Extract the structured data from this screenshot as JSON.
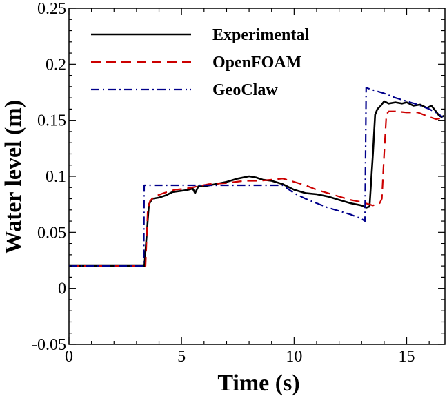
{
  "chart_data": {
    "type": "line",
    "title": "",
    "xlabel": "Time (s)",
    "ylabel": "Water level (m)",
    "xlim": [
      0,
      16.7
    ],
    "ylim": [
      -0.05,
      0.25
    ],
    "xticks": [
      0,
      5,
      10,
      15
    ],
    "xtick_labels": [
      "0",
      "5",
      "10",
      "15"
    ],
    "yticks": [
      -0.05,
      0,
      0.05,
      0.1,
      0.15,
      0.2,
      0.25
    ],
    "ytick_labels": [
      "-0.05",
      "0",
      "0.05",
      "0.1",
      "0.15",
      "0.2",
      "0.25"
    ],
    "grid": false,
    "legend_position": "top-left",
    "series": [
      {
        "name": "Experimental",
        "color": "#000000",
        "style": "solid",
        "points": [
          [
            0,
            0.02
          ],
          [
            3.3,
            0.02
          ],
          [
            3.35,
            0.02
          ],
          [
            3.55,
            0.075
          ],
          [
            3.7,
            0.08
          ],
          [
            4.0,
            0.081
          ],
          [
            4.3,
            0.083
          ],
          [
            4.6,
            0.086
          ],
          [
            5.0,
            0.087
          ],
          [
            5.3,
            0.088
          ],
          [
            5.5,
            0.089
          ],
          [
            5.6,
            0.085
          ],
          [
            5.75,
            0.091
          ],
          [
            6.0,
            0.091
          ],
          [
            6.5,
            0.093
          ],
          [
            7.0,
            0.095
          ],
          [
            7.5,
            0.098
          ],
          [
            8.0,
            0.1
          ],
          [
            8.3,
            0.099
          ],
          [
            8.6,
            0.097
          ],
          [
            9.0,
            0.096
          ],
          [
            9.5,
            0.093
          ],
          [
            10.0,
            0.088
          ],
          [
            10.5,
            0.085
          ],
          [
            11.0,
            0.084
          ],
          [
            11.5,
            0.082
          ],
          [
            12.0,
            0.079
          ],
          [
            12.5,
            0.076
          ],
          [
            13.0,
            0.074
          ],
          [
            13.2,
            0.072
          ],
          [
            13.35,
            0.073
          ],
          [
            13.5,
            0.12
          ],
          [
            13.6,
            0.155
          ],
          [
            13.7,
            0.16
          ],
          [
            13.85,
            0.163
          ],
          [
            14.0,
            0.167
          ],
          [
            14.2,
            0.165
          ],
          [
            14.5,
            0.166
          ],
          [
            14.8,
            0.165
          ],
          [
            15.0,
            0.166
          ],
          [
            15.3,
            0.163
          ],
          [
            15.6,
            0.164
          ],
          [
            15.9,
            0.161
          ],
          [
            16.1,
            0.163
          ],
          [
            16.3,
            0.158
          ],
          [
            16.45,
            0.154
          ],
          [
            16.55,
            0.153
          ],
          [
            16.65,
            0.154
          ]
        ]
      },
      {
        "name": "OpenFOAM",
        "color": "#cc0000",
        "style": "dashed",
        "points": [
          [
            0,
            0.02
          ],
          [
            3.3,
            0.02
          ],
          [
            3.4,
            0.02
          ],
          [
            3.5,
            0.07
          ],
          [
            3.6,
            0.078
          ],
          [
            3.8,
            0.082
          ],
          [
            4.2,
            0.085
          ],
          [
            4.7,
            0.088
          ],
          [
            5.2,
            0.089
          ],
          [
            5.7,
            0.091
          ],
          [
            6.2,
            0.093
          ],
          [
            7.0,
            0.094
          ],
          [
            7.8,
            0.096
          ],
          [
            8.5,
            0.096
          ],
          [
            9.0,
            0.097
          ],
          [
            9.5,
            0.098
          ],
          [
            10.0,
            0.095
          ],
          [
            10.5,
            0.092
          ],
          [
            11.0,
            0.088
          ],
          [
            11.5,
            0.085
          ],
          [
            12.0,
            0.082
          ],
          [
            12.5,
            0.079
          ],
          [
            13.0,
            0.077
          ],
          [
            13.5,
            0.074
          ],
          [
            13.8,
            0.076
          ],
          [
            13.9,
            0.08
          ],
          [
            14.0,
            0.12
          ],
          [
            14.1,
            0.155
          ],
          [
            14.2,
            0.158
          ],
          [
            14.5,
            0.158
          ],
          [
            15.0,
            0.157
          ],
          [
            15.5,
            0.157
          ],
          [
            16.0,
            0.153
          ],
          [
            16.3,
            0.151
          ],
          [
            16.6,
            0.152
          ]
        ]
      },
      {
        "name": "GeoClaw",
        "color": "#00008b",
        "style": "dashdot",
        "points": [
          [
            0,
            0.02
          ],
          [
            3.32,
            0.02
          ],
          [
            3.34,
            0.092
          ],
          [
            3.5,
            0.092
          ],
          [
            4.0,
            0.092
          ],
          [
            5.0,
            0.092
          ],
          [
            6.0,
            0.092
          ],
          [
            7.0,
            0.092
          ],
          [
            8.0,
            0.092
          ],
          [
            9.0,
            0.092
          ],
          [
            9.5,
            0.092
          ],
          [
            10.0,
            0.085
          ],
          [
            10.5,
            0.08
          ],
          [
            11.0,
            0.076
          ],
          [
            11.5,
            0.072
          ],
          [
            12.0,
            0.069
          ],
          [
            12.5,
            0.066
          ],
          [
            13.0,
            0.062
          ],
          [
            13.15,
            0.06
          ],
          [
            13.2,
            0.179
          ],
          [
            13.5,
            0.177
          ],
          [
            14.0,
            0.174
          ],
          [
            14.5,
            0.17
          ],
          [
            15.0,
            0.167
          ],
          [
            15.5,
            0.164
          ],
          [
            16.0,
            0.16
          ],
          [
            16.3,
            0.157
          ],
          [
            16.6,
            0.153
          ]
        ]
      }
    ]
  }
}
